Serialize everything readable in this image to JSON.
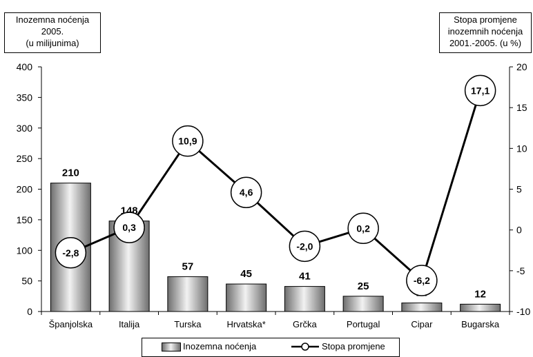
{
  "chart_data": {
    "type": "bar",
    "categories": [
      "Španjolska",
      "Italija",
      "Turska",
      "Hrvatska*",
      "Grčka",
      "Portugal",
      "Cipar",
      "Bugarska"
    ],
    "series": [
      {
        "name": "Inozemna noćenja",
        "type": "bar",
        "axis": "left",
        "values": [
          210,
          148,
          57,
          45,
          41,
          25,
          14,
          12
        ],
        "labels": [
          "210",
          "148",
          "57",
          "45",
          "41",
          "25",
          "14",
          "12"
        ]
      },
      {
        "name": "Stopa promjene",
        "type": "line",
        "axis": "right",
        "values": [
          -2.8,
          0.3,
          10.9,
          4.6,
          -2.0,
          0.2,
          -6.2,
          17.1
        ],
        "labels": [
          "-2,8",
          "0,3",
          "10,9",
          "4,6",
          "-2,0",
          "0,2",
          "-6,2",
          "17,1"
        ]
      }
    ],
    "y_left": {
      "title_lines": [
        "Inozemna noćenja",
        "2005.",
        "(u milijunima)"
      ],
      "ylim": [
        0,
        400
      ],
      "ticks": [
        "0",
        "50",
        "100",
        "150",
        "200",
        "250",
        "300",
        "350",
        "400"
      ]
    },
    "y_right": {
      "title_lines": [
        "Stopa promjene",
        "inozemnih noćenja",
        "2001.-2005. (u %)"
      ],
      "ylim": [
        -10,
        20
      ],
      "ticks": [
        "-10",
        "-5",
        "0",
        "5",
        "10",
        "15",
        "20"
      ]
    },
    "grid": false,
    "legend_position": "bottom-center",
    "colors": {
      "bar_dark": "#6e6e6e",
      "bar_light": "#f2f2f2",
      "line": "#000000"
    }
  }
}
